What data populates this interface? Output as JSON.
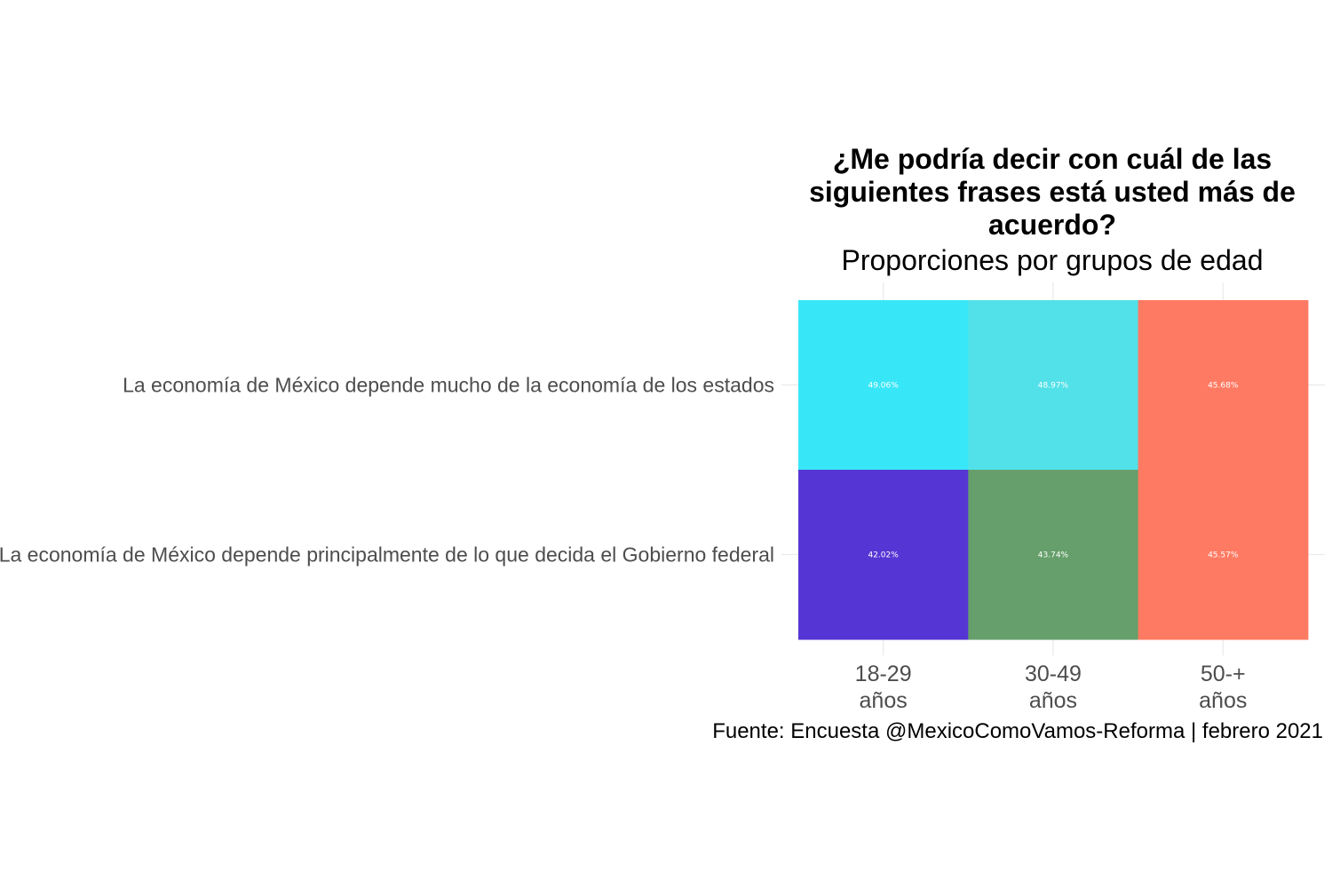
{
  "chart_data": {
    "type": "heatmap",
    "title_lines": [
      "¿Me podría decir con cuál de las",
      "siguientes frases está usted más de",
      "acuerdo?"
    ],
    "subtitle": "Proporciones por grupos de edad",
    "caption": "Fuente: Encuesta @MexicoComoVamos-Reforma | febrero 2021",
    "x_categories": [
      [
        "18-29",
        "años"
      ],
      [
        "30-49",
        "años"
      ],
      [
        "50-+",
        "años"
      ]
    ],
    "y_categories": [
      "La economía de México depende mucho de la economía de los estados",
      "La economía de México depende principalmente de lo que decida el Gobierno federal"
    ],
    "values": [
      [
        49.06,
        48.97,
        45.68
      ],
      [
        42.02,
        43.74,
        45.57
      ]
    ],
    "value_labels": [
      [
        "49.06%",
        "48.97%",
        "45.68%"
      ],
      [
        "42.02%",
        "43.74%",
        "45.57%"
      ]
    ],
    "cell_colors": [
      [
        "#38e7f7",
        "#52e1e8",
        "#ff7a62"
      ],
      [
        "#5536d4",
        "#669f6b",
        "#ff7a62"
      ]
    ],
    "grid": true,
    "legend": "none"
  }
}
